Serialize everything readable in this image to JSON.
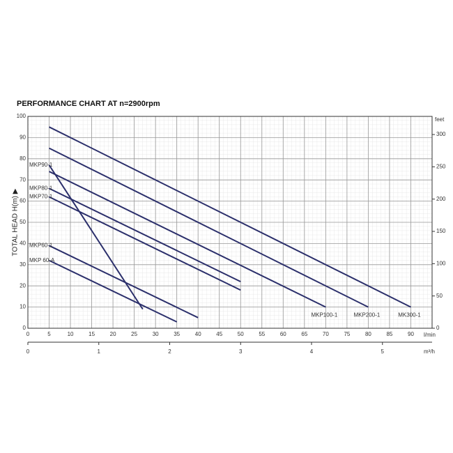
{
  "chart_data": {
    "type": "line",
    "title": "PERFORMANCE CHART AT n=2900rpm",
    "ylabel": "TOTAL HEAD H(m) ▶",
    "xlabel": "l/min",
    "x2label": "m³/h",
    "y2label": "feet",
    "xlim": [
      0,
      95
    ],
    "xticks": [
      0,
      5,
      10,
      15,
      20,
      25,
      30,
      35,
      40,
      45,
      50,
      55,
      60,
      65,
      70,
      75,
      80,
      85,
      90
    ],
    "ylim": [
      0,
      100
    ],
    "yticks": [
      0,
      10,
      20,
      30,
      40,
      50,
      60,
      70,
      80,
      90,
      100
    ],
    "x2lim": [
      0,
      5.7
    ],
    "x2ticks": [
      0,
      1,
      2,
      3,
      4,
      5
    ],
    "y2lim": [
      0,
      328.08
    ],
    "y2ticks": [
      0,
      50,
      100,
      150,
      200,
      250,
      300
    ],
    "grid": true,
    "series": [
      {
        "name": "MK300-1",
        "color": "#2b2f6b",
        "label_position": "end",
        "x": [
          5,
          90
        ],
        "values": [
          95,
          10
        ]
      },
      {
        "name": "MKP200-1",
        "color": "#2b2f6b",
        "label_position": "end",
        "x": [
          5,
          80
        ],
        "values": [
          85,
          10
        ]
      },
      {
        "name": "MKP100-1",
        "color": "#2b2f6b",
        "label_position": "end",
        "x": [
          5,
          70
        ],
        "values": [
          74,
          10
        ]
      },
      {
        "name": "MKP90-1",
        "color": "#2b2f6b",
        "label_position": "start",
        "x": [
          5,
          27
        ],
        "values": [
          77,
          9
        ]
      },
      {
        "name": "MKP80-1",
        "color": "#2b2f6b",
        "label_position": "start",
        "x": [
          5,
          50
        ],
        "values": [
          66,
          22
        ]
      },
      {
        "name": "MKP70-1",
        "color": "#2b2f6b",
        "label_position": "start",
        "x": [
          5,
          50
        ],
        "values": [
          62,
          18
        ]
      },
      {
        "name": "MKP60-1",
        "color": "#2b2f6b",
        "label_position": "start",
        "x": [
          5,
          40
        ],
        "values": [
          39,
          5
        ]
      },
      {
        "name": "MKP 60-A",
        "color": "#2b2f6b",
        "label_position": "start",
        "x": [
          5,
          35
        ],
        "values": [
          32,
          3
        ]
      }
    ]
  }
}
